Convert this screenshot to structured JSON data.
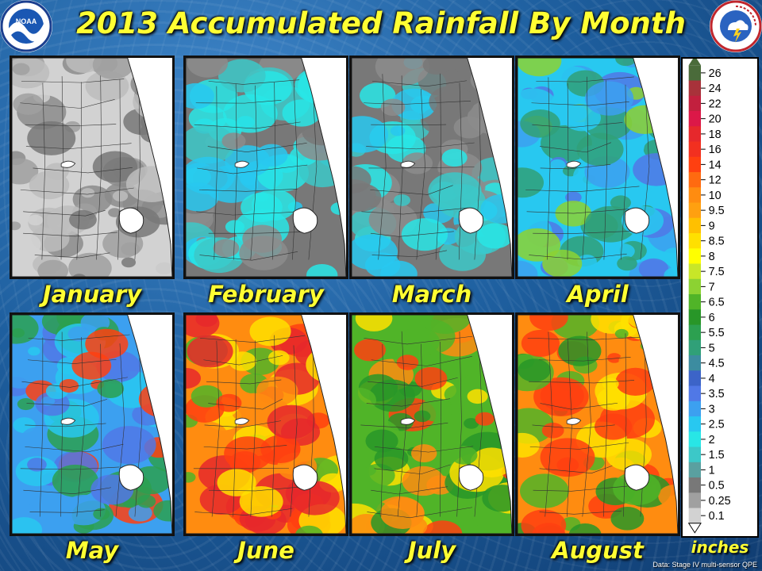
{
  "title": "2013 Accumulated Rainfall By Month",
  "logos": {
    "noaa": {
      "text": "NOAA",
      "icon": "noaa-logo-icon"
    },
    "nws": {
      "icon": "nws-logo-icon"
    }
  },
  "panels": [
    {
      "month": "January",
      "level": "low"
    },
    {
      "month": "February",
      "level": "low-cyan"
    },
    {
      "month": "March",
      "level": "low-cyan"
    },
    {
      "month": "April",
      "level": "cyan-green"
    },
    {
      "month": "May",
      "level": "blue-green"
    },
    {
      "month": "June",
      "level": "orange-red"
    },
    {
      "month": "July",
      "level": "green-orange"
    },
    {
      "month": "August",
      "level": "orange-green"
    }
  ],
  "legend": {
    "unit_label": "inches",
    "items": [
      {
        "label": "26",
        "color": "#4a6b3a"
      },
      {
        "label": "24",
        "color": "#a8323a"
      },
      {
        "label": "22",
        "color": "#c2203e"
      },
      {
        "label": "20",
        "color": "#dc1848"
      },
      {
        "label": "18",
        "color": "#e6282c"
      },
      {
        "label": "16",
        "color": "#f23020"
      },
      {
        "label": "14",
        "color": "#ff4010"
      },
      {
        "label": "12",
        "color": "#ff6a10"
      },
      {
        "label": "10",
        "color": "#ff8c10"
      },
      {
        "label": "9.5",
        "color": "#ffa010"
      },
      {
        "label": "9",
        "color": "#ffc000"
      },
      {
        "label": "8.5",
        "color": "#ffe000"
      },
      {
        "label": "8",
        "color": "#ffff00"
      },
      {
        "label": "7.5",
        "color": "#c8e628"
      },
      {
        "label": "7",
        "color": "#8cd232"
      },
      {
        "label": "6.5",
        "color": "#50b428"
      },
      {
        "label": "6",
        "color": "#289628"
      },
      {
        "label": "5.5",
        "color": "#2ca050"
      },
      {
        "label": "5",
        "color": "#30a078"
      },
      {
        "label": "4.5",
        "color": "#3c8ca0"
      },
      {
        "label": "4",
        "color": "#3c64c8"
      },
      {
        "label": "3.5",
        "color": "#5078e6"
      },
      {
        "label": "3",
        "color": "#3ca0f0"
      },
      {
        "label": "2.5",
        "color": "#28c8f0"
      },
      {
        "label": "2",
        "color": "#28e6e6"
      },
      {
        "label": "1.5",
        "color": "#3cc8c8"
      },
      {
        "label": "1",
        "color": "#5aa0a0"
      },
      {
        "label": "0.5",
        "color": "#787878"
      },
      {
        "label": "0.25",
        "color": "#a0a0a0"
      },
      {
        "label": "0.1",
        "color": "#d2d2d2"
      }
    ]
  },
  "source_note": "Data: Stage IV multi-sensor QPE"
}
